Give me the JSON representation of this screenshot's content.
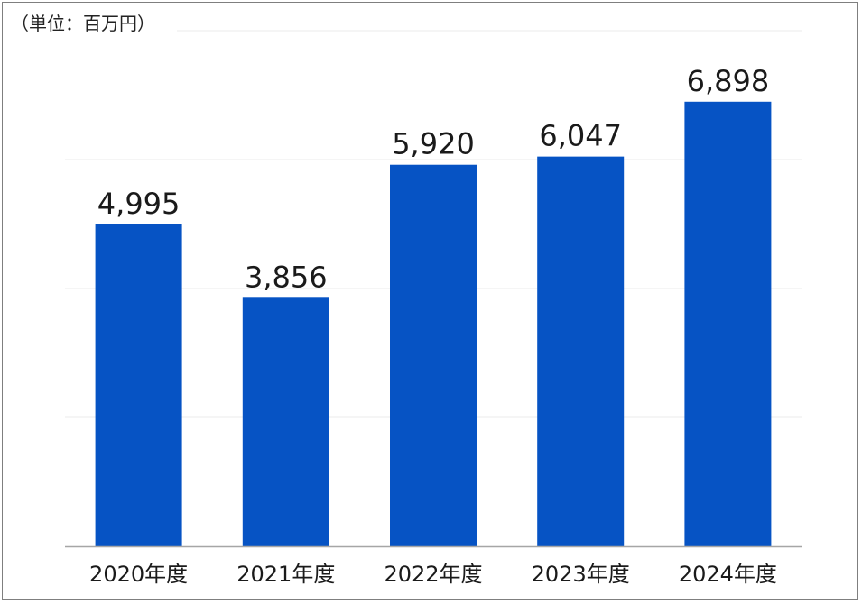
{
  "unit_label": "（単位：百万円）",
  "chart_data": {
    "type": "bar",
    "categories": [
      "2020年度",
      "2021年度",
      "2022年度",
      "2023年度",
      "2024年度"
    ],
    "values": [
      4995,
      3856,
      5920,
      6047,
      6898
    ],
    "value_labels": [
      "4,995",
      "3,856",
      "5,920",
      "6,047",
      "6,898"
    ],
    "title": "",
    "xlabel": "",
    "ylabel": "",
    "ylim": [
      0,
      8000
    ],
    "grid": true,
    "bar_color": "#0653c4",
    "gridline_color": "#ebebeb",
    "axis_color": "#a6a6a6"
  }
}
